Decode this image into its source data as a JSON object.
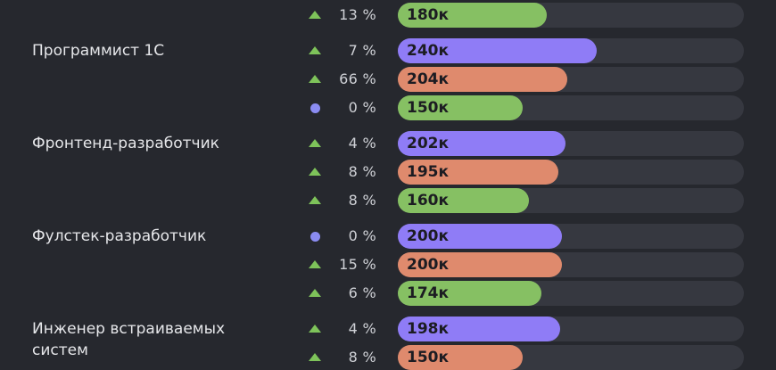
{
  "rows": [
    {
      "role": "",
      "trend": "up",
      "pct": "13 %",
      "value": "180к",
      "level": 0.43,
      "color": "green"
    },
    {
      "role": "Программист 1С",
      "trend": "up",
      "pct": "7 %",
      "value": "240к",
      "level": 0.575,
      "color": "purple"
    },
    {
      "role": "",
      "trend": "up",
      "pct": "66 %",
      "value": "204к",
      "level": 0.49,
      "color": "orange"
    },
    {
      "role": "",
      "trend": "flat",
      "pct": "0 %",
      "value": "150к",
      "level": 0.36,
      "color": "green"
    },
    {
      "role": "Фронтенд-разработчик",
      "trend": "up",
      "pct": "4 %",
      "value": "202к",
      "level": 0.485,
      "color": "purple"
    },
    {
      "role": "",
      "trend": "up",
      "pct": "8 %",
      "value": "195к",
      "level": 0.465,
      "color": "orange"
    },
    {
      "role": "",
      "trend": "up",
      "pct": "8 %",
      "value": "160к",
      "level": 0.38,
      "color": "green"
    },
    {
      "role": "Фулстек-разработчик",
      "trend": "flat",
      "pct": "0 %",
      "value": "200к",
      "level": 0.475,
      "color": "purple"
    },
    {
      "role": "",
      "trend": "up",
      "pct": "15 %",
      "value": "200к",
      "level": 0.475,
      "color": "orange"
    },
    {
      "role": "",
      "trend": "up",
      "pct": "6 %",
      "value": "174к",
      "level": 0.415,
      "color": "green"
    },
    {
      "role": "Инженер встраиваемых систем",
      "trend": "up",
      "pct": "4 %",
      "value": "198к",
      "level": 0.47,
      "color": "purple"
    },
    {
      "role": "",
      "trend": "up",
      "pct": "8 %",
      "value": "150к",
      "level": 0.36,
      "color": "orange"
    }
  ],
  "colors": {
    "purple": "#8f7cf6",
    "orange": "#df8a6d",
    "green": "#86c063",
    "up": "#7ec35a",
    "flat": "#8b8cf2"
  },
  "icons": {
    "up": "triangle-up-icon",
    "flat": "dot-icon"
  }
}
